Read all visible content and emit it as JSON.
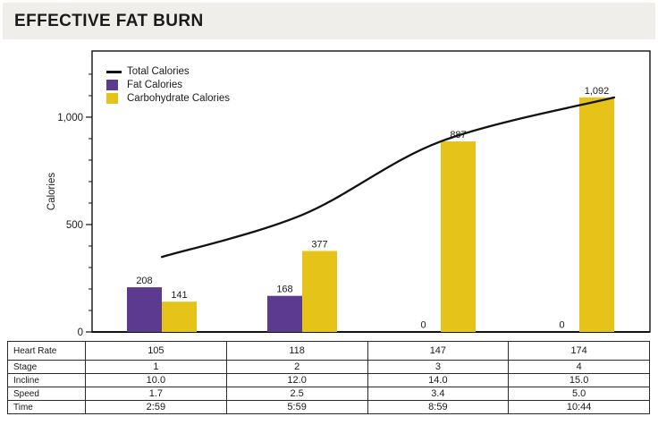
{
  "header": {
    "title": "EFFECTIVE FAT BURN"
  },
  "legend": [
    {
      "label": "Total Calories",
      "swatch": "line",
      "color": "#111111"
    },
    {
      "label": "Fat Calories",
      "swatch": "box",
      "color": "#5B3A90"
    },
    {
      "label": "Carbohydrate Calories",
      "swatch": "box",
      "color": "#E6C319"
    }
  ],
  "chart_data": {
    "type": "bar+line",
    "title": "EFFECTIVE FAT BURN",
    "xlabel": "",
    "ylabel": "Calories",
    "ylim": [
      0,
      1308
    ],
    "grid": false,
    "legend_position": "top-left-inside",
    "y_major_ticks": [
      {
        "value": 0,
        "label": "0"
      },
      {
        "value": 500,
        "label": "500"
      },
      {
        "value": 1000,
        "label": "1,000"
      }
    ],
    "y_minor_tick_step": 100,
    "categories": [
      "1",
      "2",
      "3",
      "4"
    ],
    "series": [
      {
        "name": "Total Calories",
        "type": "line",
        "color": "#111111",
        "values": [
          349,
          545,
          887,
          1092
        ]
      },
      {
        "name": "Fat Calories",
        "type": "bar",
        "color": "#5B3A90",
        "values": [
          208,
          168,
          0,
          0
        ],
        "labels": [
          "208",
          "168",
          "0",
          "0"
        ]
      },
      {
        "name": "Carbohydrate Calories",
        "type": "bar",
        "color": "#E6C319",
        "values": [
          141,
          377,
          887,
          1092
        ],
        "labels": [
          "141",
          "377",
          "887",
          "1,092"
        ]
      }
    ]
  },
  "table": {
    "rows": [
      {
        "label": "Heart Rate",
        "values": [
          "105",
          "118",
          "147",
          "174"
        ]
      },
      {
        "label": "Stage",
        "values": [
          "1",
          "2",
          "3",
          "4"
        ]
      },
      {
        "label": "Incline",
        "values": [
          "10.0",
          "12.0",
          "14.0",
          "15.0"
        ]
      },
      {
        "label": "Speed",
        "values": [
          "1.7",
          "2.5",
          "3.4",
          "5.0"
        ]
      },
      {
        "label": "Time",
        "values": [
          "2:59",
          "5:59",
          "8:59",
          "10:44"
        ]
      }
    ]
  },
  "colors": {
    "header_bg": "#F0EEEB",
    "axis": "#111111",
    "table_border": "#2B2B2B",
    "text": "#1A1A1A"
  }
}
